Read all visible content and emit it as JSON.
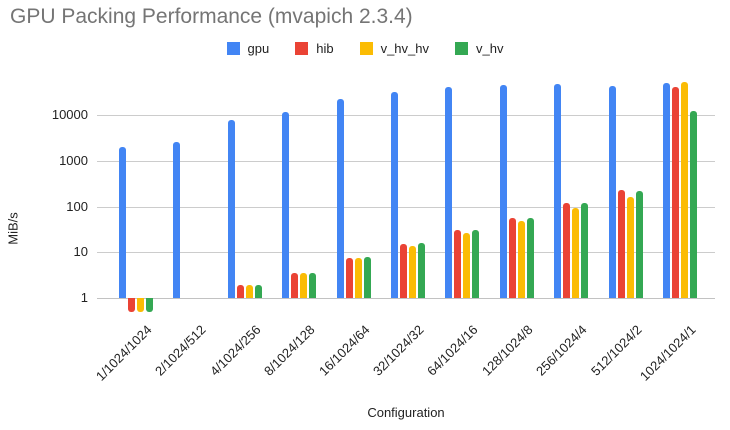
{
  "title": "GPU Packing Performance (mvapich 2.3.4)",
  "chart_data": {
    "type": "bar",
    "title": "GPU Packing Performance (mvapich 2.3.4)",
    "xlabel": "Configuration",
    "ylabel": "MiB/s",
    "y_scale": "log",
    "baseline": 1,
    "y_ticks": [
      1,
      10,
      100,
      1000,
      10000
    ],
    "ylim": [
      0.45,
      80000
    ],
    "grid": true,
    "legend_position": "top",
    "categories": [
      "1/1024/1024",
      "2/1024/512",
      "4/1024/256",
      "8/1024/128",
      "16/1024/64",
      "32/1024/32",
      "64/1024/16",
      "128/1024/8",
      "256/1024/4",
      "512/1024/2",
      "1024/1024/1"
    ],
    "series": [
      {
        "name": "gpu",
        "color": "#4285F4",
        "values": [
          2000,
          2600,
          8000,
          12000,
          23000,
          33000,
          41000,
          45000,
          48000,
          43000,
          50000
        ]
      },
      {
        "name": "hib",
        "color": "#EA4335",
        "values": [
          0.5,
          1,
          1.9,
          3.6,
          7.5,
          15,
          31,
          57,
          118,
          230,
          41000
        ]
      },
      {
        "name": "v_hv_hv",
        "color": "#FBBC04",
        "values": [
          0.5,
          1,
          1.9,
          3.6,
          7.5,
          14,
          26,
          48,
          95,
          160,
          53000
        ]
      },
      {
        "name": "v_hv",
        "color": "#34A853",
        "values": [
          0.5,
          1,
          1.9,
          3.6,
          8,
          16,
          30,
          57,
          118,
          220,
          12600
        ]
      }
    ]
  },
  "colors": {
    "title_text": "#757575",
    "axis_text": "#222222",
    "gridline": "#cccccc"
  }
}
